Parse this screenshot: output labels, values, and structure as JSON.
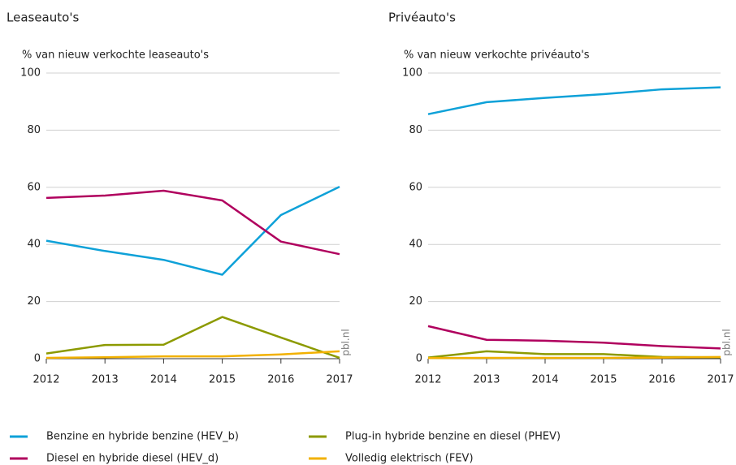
{
  "chart_data": [
    {
      "type": "line",
      "title": "Leaseauto's",
      "y_label": "% van nieuw verkochte leaseauto's",
      "categories": [
        "2012",
        "2013",
        "2014",
        "2015",
        "2016",
        "2017"
      ],
      "ylim": [
        0,
        100
      ],
      "yticks": [
        0,
        20,
        40,
        60,
        80,
        100
      ],
      "grid": true,
      "annotation": "pbl.nl",
      "series": [
        {
          "name": "Benzine en hybride benzine (HEV_b)",
          "color": "#0ea1d8",
          "values": [
            41.3,
            37.7,
            34.6,
            29.4,
            50.3,
            60.2
          ]
        },
        {
          "name": "Diesel en hybride diesel (HEV_d)",
          "color": "#b0005e",
          "values": [
            56.3,
            57.1,
            58.8,
            55.4,
            41,
            36.6
          ]
        },
        {
          "name": "Plug-in hybride benzine en diesel (PHEV)",
          "color": "#8c9a00",
          "values": [
            1.8,
            4.8,
            4.9,
            14.6,
            7.4,
            0.3
          ]
        },
        {
          "name": "Volledig elektrisch (FEV)",
          "color": "#f2b100",
          "values": [
            0.3,
            0.5,
            0.8,
            0.8,
            1.5,
            2.6
          ]
        }
      ]
    },
    {
      "type": "line",
      "title": "Privéauto's",
      "y_label": "% van nieuw verkochte privéauto's",
      "categories": [
        "2012",
        "2013",
        "2014",
        "2015",
        "2016",
        "2017"
      ],
      "ylim": [
        0,
        100
      ],
      "yticks": [
        0,
        20,
        40,
        60,
        80,
        100
      ],
      "grid": true,
      "annotation": "pbl.nl",
      "series": [
        {
          "color": "#0ea1d8",
          "values": [
            85.6,
            89.8,
            91.3,
            92.6,
            94.3,
            95
          ]
        },
        {
          "color": "#b0005e",
          "values": [
            11.4,
            6.6,
            6.3,
            5.6,
            4.4,
            3.6
          ]
        },
        {
          "color": "#8c9a00",
          "values": [
            0.4,
            2.6,
            1.6,
            1.6,
            0.6,
            0.5
          ]
        },
        {
          "color": "#f2b100",
          "values": [
            0.2,
            0.3,
            0.3,
            0.3,
            0.4,
            0.6
          ]
        }
      ]
    }
  ]
}
